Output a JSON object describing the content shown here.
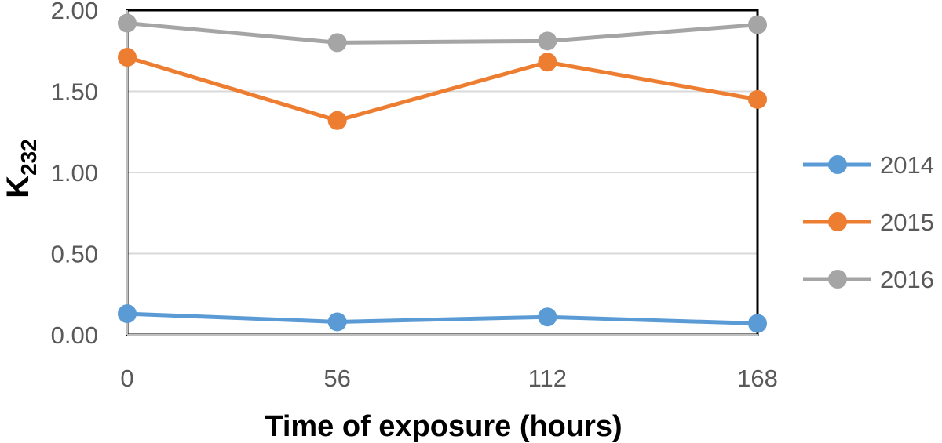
{
  "chart_data": {
    "type": "line",
    "x": [
      0,
      56,
      112,
      168
    ],
    "xlabel": "Time of exposure (hours)",
    "ylabel_main": "K",
    "ylabel_sub": "232",
    "ylim": [
      0,
      2
    ],
    "yticks": [
      "0.00",
      "0.50",
      "1.00",
      "1.50",
      "2.00"
    ],
    "xticks": [
      "0",
      "56",
      "112",
      "168"
    ],
    "grid": true,
    "legend_position": "right",
    "series": [
      {
        "name": "2014",
        "color": "#5B9BD5",
        "values": [
          0.13,
          0.08,
          0.11,
          0.07
        ]
      },
      {
        "name": "2015",
        "color": "#ED7D31",
        "values": [
          1.71,
          1.32,
          1.68,
          1.45
        ]
      },
      {
        "name": "2016",
        "color": "#A5A5A5",
        "values": [
          1.92,
          1.8,
          1.81,
          1.91
        ]
      }
    ]
  }
}
